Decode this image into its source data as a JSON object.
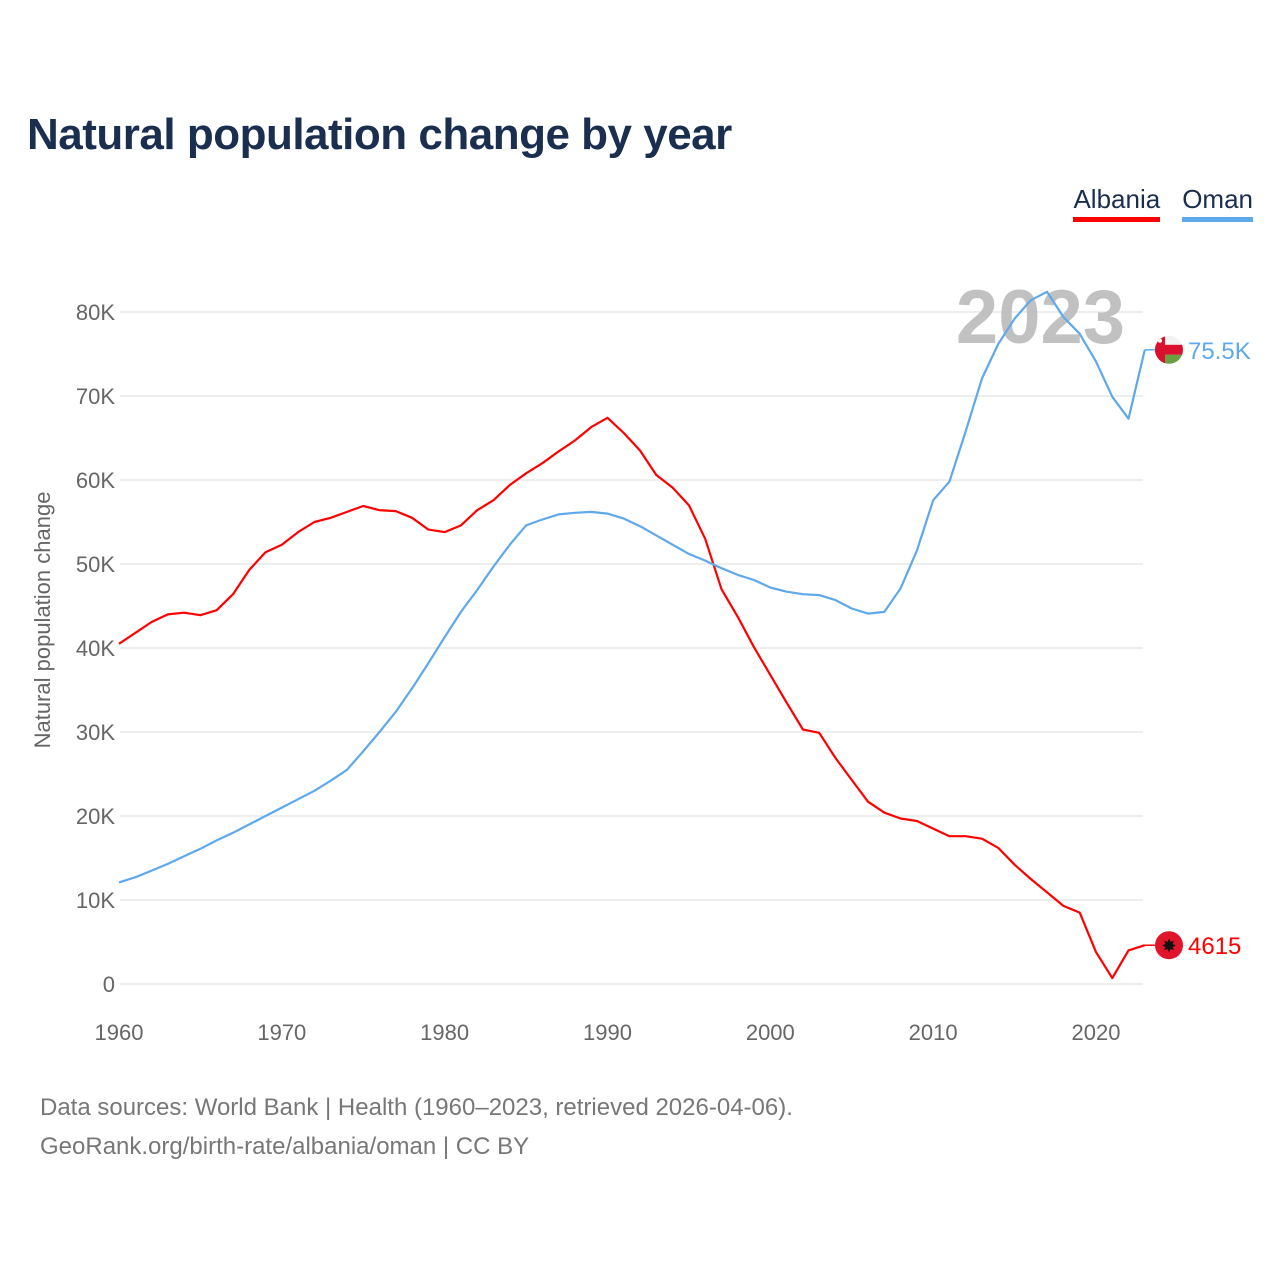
{
  "title": "Natural population change by year",
  "legend": [
    {
      "label": "Albania",
      "color": "#ff0000"
    },
    {
      "label": "Oman",
      "color": "#5ea8ec"
    }
  ],
  "source": {
    "line1": "Data sources: World Bank | Health (1960–2023, retrieved 2026-04-06).",
    "line2": "GeoRank.org/birth-rate/albania/oman | CC BY"
  },
  "chart_data": {
    "type": "line",
    "title": "Natural population change by year",
    "xlabel": "",
    "ylabel": "Natural population change",
    "year_watermark": "2023",
    "xlim": [
      1960,
      2023
    ],
    "ylim": [
      0,
      80000
    ],
    "x_ticks": [
      1960,
      1970,
      1980,
      1990,
      2000,
      2010,
      2020
    ],
    "y_ticks": [
      {
        "v": 0,
        "label": "0"
      },
      {
        "v": 10000,
        "label": "10K"
      },
      {
        "v": 20000,
        "label": "20K"
      },
      {
        "v": 30000,
        "label": "30K"
      },
      {
        "v": 40000,
        "label": "40K"
      },
      {
        "v": 50000,
        "label": "50K"
      },
      {
        "v": 60000,
        "label": "60K"
      },
      {
        "v": 70000,
        "label": "70K"
      },
      {
        "v": 80000,
        "label": "80K"
      }
    ],
    "grid": true,
    "legend_position": "top-right",
    "x": [
      1960,
      1961,
      1962,
      1963,
      1964,
      1965,
      1966,
      1967,
      1968,
      1969,
      1970,
      1971,
      1972,
      1973,
      1974,
      1975,
      1976,
      1977,
      1978,
      1979,
      1980,
      1981,
      1982,
      1983,
      1984,
      1985,
      1986,
      1987,
      1988,
      1989,
      1990,
      1991,
      1992,
      1993,
      1994,
      1995,
      1996,
      1997,
      1998,
      1999,
      2000,
      2001,
      2002,
      2003,
      2004,
      2005,
      2006,
      2007,
      2008,
      2009,
      2010,
      2011,
      2012,
      2013,
      2014,
      2015,
      2016,
      2017,
      2018,
      2019,
      2020,
      2021,
      2022,
      2023
    ],
    "series": [
      {
        "name": "Albania",
        "color": "#ff0000",
        "end_label": "4615",
        "values": [
          40500,
          41800,
          43100,
          44000,
          44200,
          43900,
          44500,
          46400,
          49300,
          51400,
          52300,
          53800,
          55000,
          55500,
          56200,
          56900,
          56400,
          56300,
          55500,
          54100,
          53800,
          54600,
          56400,
          57600,
          59400,
          60800,
          62000,
          63400,
          64700,
          66300,
          67400,
          65600,
          63500,
          60600,
          59100,
          57000,
          53000,
          47000,
          43700,
          40100,
          36800,
          33500,
          30300,
          29900,
          26900,
          24300,
          21700,
          20400,
          19700,
          19400,
          18500,
          17600,
          17600,
          17300,
          16200,
          14200,
          12500,
          10900,
          9300,
          8500,
          3800,
          700,
          4000,
          4615
        ]
      },
      {
        "name": "Oman",
        "color": "#5ea8ec",
        "end_label": "75.5K",
        "values": [
          12100,
          12700,
          13500,
          14300,
          15200,
          16100,
          17100,
          18000,
          19000,
          20000,
          21000,
          22000,
          23000,
          24200,
          25500,
          27700,
          30000,
          32400,
          35200,
          38200,
          41300,
          44300,
          46900,
          49700,
          52300,
          54600,
          55300,
          55900,
          56100,
          56200,
          56000,
          55400,
          54500,
          53400,
          52300,
          51200,
          50400,
          49500,
          48700,
          48100,
          47200,
          46700,
          46400,
          46300,
          45700,
          44700,
          44100,
          44300,
          47100,
          51600,
          57600,
          59800,
          65800,
          72100,
          76200,
          79200,
          81400,
          82400,
          79400,
          77400,
          74100,
          69900,
          67300,
          75500
        ]
      }
    ]
  }
}
